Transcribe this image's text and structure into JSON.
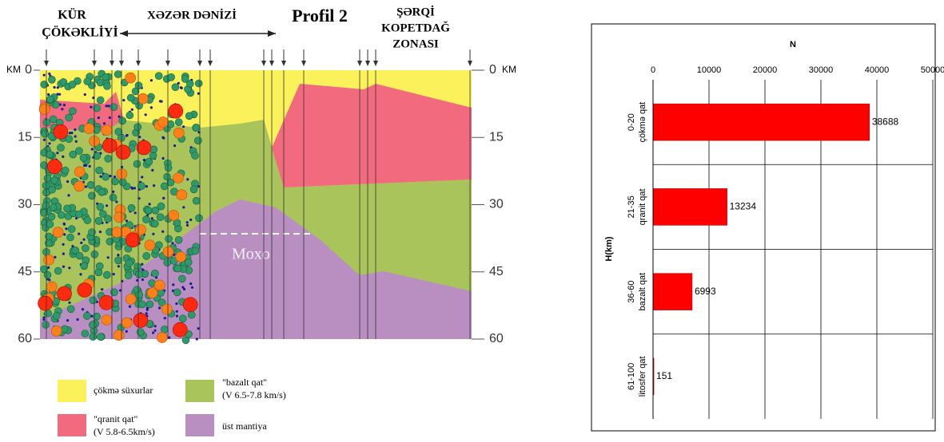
{
  "diagram": {
    "title": "Profil 2",
    "regions": [
      "KÜR",
      "ÇÖKƏKLİYİ",
      "XƏZƏR DƏNİZİ",
      "ŞƏRQİ",
      "KOPETDAĞ",
      "ZONASI"
    ],
    "km_unit_left": "KM",
    "km_unit_right": "KM",
    "depth_labels": [
      "0",
      "15",
      "30",
      "45",
      "60"
    ],
    "moho_label": "Moxo",
    "legend": [
      {
        "label": "çökmə süxurlar"
      },
      {
        "label": "\"bazalt qat\"",
        "sublabel": "(V 6.5-7.8 km/s)"
      },
      {
        "label": "\"qranit qat\"",
        "sublabel": "(V 5.8-6.5km/s)"
      },
      {
        "label": "üst mantiya"
      }
    ]
  },
  "chart_data": {
    "type": "hbar",
    "x_label": "N",
    "y_label": "H(km)",
    "categories": [
      "0-20",
      "21-35",
      "36-60",
      "61-100"
    ],
    "category_sublabels": [
      "çökmə qat",
      "qranit qat",
      "bazalt qat",
      "litosfer qat"
    ],
    "values": [
      38688,
      13234,
      6993,
      151
    ],
    "color": "#ff0000",
    "xlim": [
      0,
      50000
    ],
    "xticks": [
      0,
      10000,
      20000,
      30000,
      40000,
      50000
    ],
    "grid": true
  }
}
